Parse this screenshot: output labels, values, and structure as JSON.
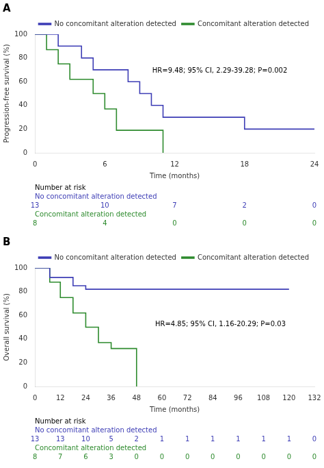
{
  "chart_data": [
    {
      "type": "line",
      "title": "A",
      "xlabel": "Time (months)",
      "ylabel": "Progression-free survival (%)",
      "xlim": [
        0,
        24
      ],
      "xticks": [
        0,
        6,
        12,
        18,
        24
      ],
      "ylim": [
        0,
        100
      ],
      "yticks": [
        0,
        20,
        40,
        60,
        80,
        100
      ],
      "grid": false,
      "legend": "upper right",
      "line_style": "step",
      "series": [
        {
          "name": "No concomitant alteration detected",
          "color": "#3D3DB5",
          "x": [
            0,
            2,
            4,
            5,
            8,
            9,
            10,
            11,
            18,
            19,
            20,
            24
          ],
          "values": [
            100,
            90,
            80,
            70,
            60,
            50,
            40,
            30,
            20,
            20,
            20,
            20
          ]
        },
        {
          "name": "Concomitant alteration detected",
          "color": "#2E8B2E",
          "x": [
            0,
            1,
            2,
            3,
            5,
            6,
            7,
            10,
            11
          ],
          "values": [
            100,
            87,
            75,
            62,
            50,
            37,
            19,
            19,
            0
          ]
        }
      ],
      "annotations": [
        "HR=9.48; 95% CI, 2.29-39.28; P=0.002"
      ],
      "risk_table": {
        "title": "Number at risk",
        "x": [
          0,
          6,
          12,
          18,
          24
        ],
        "rows": [
          {
            "name": "No concomitant alteration detected",
            "color": "#3D3DB5",
            "values": [
              13,
              10,
              7,
              2,
              0
            ]
          },
          {
            "name": "Concomitant alteration detected",
            "color": "#2E8B2E",
            "values": [
              8,
              4,
              0,
              0,
              0
            ]
          }
        ]
      }
    },
    {
      "type": "line",
      "title": "B",
      "xlabel": "Time (months)",
      "ylabel": "Overall survival (%)",
      "xlim": [
        0,
        132
      ],
      "xticks": [
        0,
        12,
        24,
        36,
        48,
        60,
        72,
        84,
        96,
        108,
        120,
        132
      ],
      "ylim": [
        0,
        100
      ],
      "yticks": [
        0,
        20,
        40,
        60,
        80,
        100
      ],
      "grid": false,
      "legend": "upper right",
      "line_style": "step",
      "series": [
        {
          "name": "No concomitant alteration detected",
          "color": "#3D3DB5",
          "x": [
            0,
            7,
            12,
            18,
            24,
            120
          ],
          "values": [
            100,
            92,
            92,
            85,
            82,
            82
          ]
        },
        {
          "name": "Concomitant alteration detected",
          "color": "#2E8B2E",
          "x": [
            0,
            7,
            12,
            18,
            24,
            30,
            36,
            42,
            48
          ],
          "values": [
            100,
            88,
            75,
            62,
            50,
            37,
            32,
            32,
            0
          ]
        }
      ],
      "annotations": [
        "HR=4.85; 95% CI, 1.16-20.29; P=0.03"
      ],
      "risk_table": {
        "title": "Number at risk",
        "x": [
          0,
          12,
          24,
          36,
          48,
          60,
          72,
          84,
          96,
          108,
          120,
          132
        ],
        "rows": [
          {
            "name": "No concomitant alteration detected",
            "color": "#3D3DB5",
            "values": [
              13,
              13,
              10,
              5,
              2,
              1,
              1,
              1,
              1,
              1,
              1,
              0
            ]
          },
          {
            "name": "Concomitant alteration detected",
            "color": "#2E8B2E",
            "values": [
              8,
              7,
              6,
              3,
              0,
              0,
              0,
              0,
              0,
              0,
              0,
              0
            ]
          }
        ]
      }
    }
  ]
}
